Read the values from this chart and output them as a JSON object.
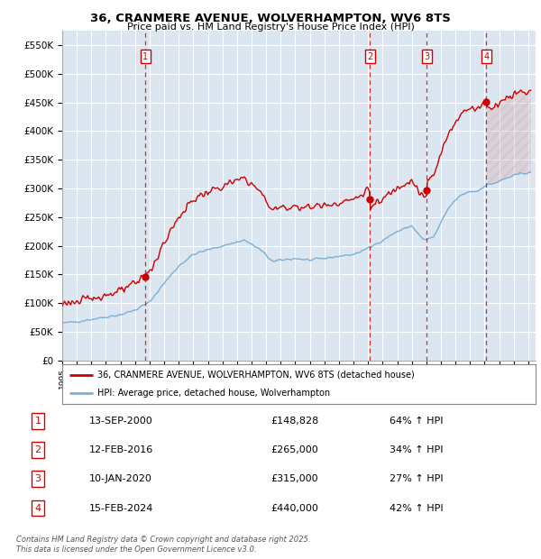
{
  "title_line1": "36, CRANMERE AVENUE, WOLVERHAMPTON, WV6 8TS",
  "title_line2": "Price paid vs. HM Land Registry's House Price Index (HPI)",
  "ylim": [
    0,
    575000
  ],
  "yticks": [
    0,
    50000,
    100000,
    150000,
    200000,
    250000,
    300000,
    350000,
    400000,
    450000,
    500000,
    550000
  ],
  "ytick_labels": [
    "£0",
    "£50K",
    "£100K",
    "£150K",
    "£200K",
    "£250K",
    "£300K",
    "£350K",
    "£400K",
    "£450K",
    "£500K",
    "£550K"
  ],
  "xlim_start": 1995.3,
  "xlim_end": 2027.5,
  "background_color": "#dce6f1",
  "grid_color": "#ffffff",
  "red_line_color": "#cc0000",
  "blue_line_color": "#7bafd4",
  "sale_points": [
    {
      "year": 2000.7,
      "price": 148828,
      "label": "1"
    },
    {
      "year": 2016.12,
      "price": 265000,
      "label": "2"
    },
    {
      "year": 2020.03,
      "price": 315000,
      "label": "3"
    },
    {
      "year": 2024.12,
      "price": 440000,
      "label": "4"
    }
  ],
  "legend_entries": [
    {
      "color": "#cc0000",
      "text": "36, CRANMERE AVENUE, WOLVERHAMPTON, WV6 8TS (detached house)"
    },
    {
      "color": "#7bafd4",
      "text": "HPI: Average price, detached house, Wolverhampton"
    }
  ],
  "table_rows": [
    {
      "num": "1",
      "date": "13-SEP-2000",
      "price": "£148,828",
      "change": "64% ↑ HPI"
    },
    {
      "num": "2",
      "date": "12-FEB-2016",
      "price": "£265,000",
      "change": "34% ↑ HPI"
    },
    {
      "num": "3",
      "date": "10-JAN-2020",
      "price": "£315,000",
      "change": "27% ↑ HPI"
    },
    {
      "num": "4",
      "date": "15-FEB-2024",
      "price": "£440,000",
      "change": "42% ↑ HPI"
    }
  ],
  "footer_text": "Contains HM Land Registry data © Crown copyright and database right 2025.\nThis data is licensed under the Open Government Licence v3.0."
}
